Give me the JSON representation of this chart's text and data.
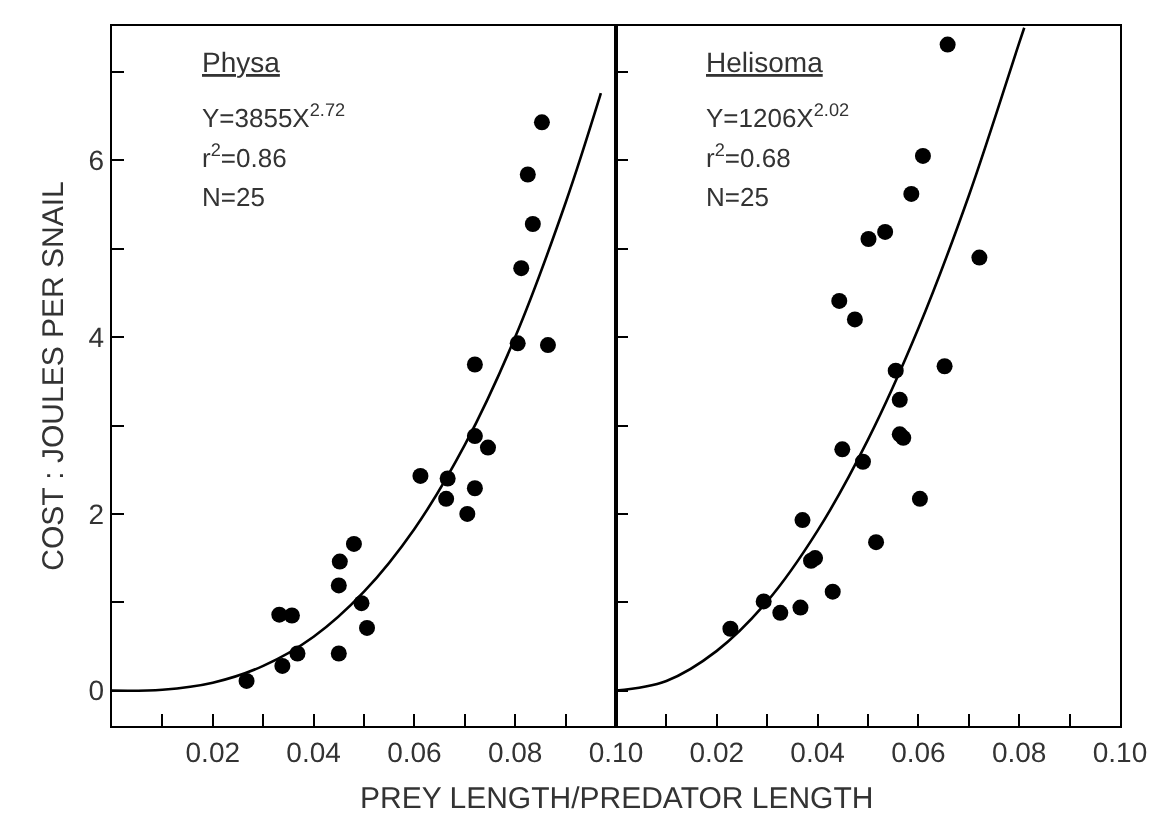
{
  "chart_data": [
    {
      "type": "scatter",
      "xlabel": "PREY LENGTH/PREDATOR LENGTH",
      "ylabel": "COST : JOULES PER SNAIL",
      "annotations": [
        "Physa",
        "Y=3855X$^{2.72}$",
        "r$^{2}$=0.86",
        "N=25"
      ],
      "series": [
        {
          "marker": "circle",
          "color": "#000000",
          "x": [
            0.0267,
            0.0338,
            0.0332,
            0.0357,
            0.0368,
            0.045,
            0.045,
            0.0452,
            0.048,
            0.0495,
            0.0506,
            0.0612,
            0.0666,
            0.0663,
            0.0705,
            0.072,
            0.072,
            0.0746,
            0.072,
            0.0805,
            0.0865,
            0.0812,
            0.0835,
            0.0825,
            0.0853
          ],
          "values": [
            0.11,
            0.28,
            0.86,
            0.85,
            0.42,
            0.42,
            1.19,
            1.46,
            1.66,
            0.99,
            0.71,
            2.43,
            2.4,
            2.17,
            2.0,
            2.29,
            2.88,
            2.75,
            3.69,
            3.93,
            3.91,
            4.78,
            5.28,
            5.84,
            6.43
          ]
        },
        {
          "type": "line",
          "color": "#000000",
          "x": [
            0,
            0.01,
            0.02,
            0.03,
            0.04,
            0.05,
            0.06,
            0.07,
            0.08,
            0.09,
            0.097
          ],
          "values": [
            0,
            0.01,
            0.09,
            0.28,
            0.61,
            1.12,
            1.83,
            2.78,
            4.0,
            5.52,
            6.76
          ]
        }
      ],
      "xlim": [
        0,
        0.1
      ],
      "xticks": [
        {
          "value": 0.01,
          "label": null
        },
        0.02,
        {
          "value": 0.03,
          "label": null
        },
        0.04,
        {
          "value": 0.05,
          "label": null
        },
        0.06,
        {
          "value": 0.07,
          "label": null
        },
        0.08,
        {
          "value": 0.09,
          "label": null
        },
        {
          "value": 0.1,
          "label": "0.10"
        }
      ],
      "ylim": [
        -0.4,
        7.52
      ],
      "yticks": [
        0,
        {
          "value": 1,
          "label": null
        },
        2,
        {
          "value": 3,
          "label": null
        },
        4,
        {
          "value": 5,
          "label": null
        },
        6,
        {
          "value": 7,
          "label": null
        }
      ]
    },
    {
      "type": "scatter",
      "tick_labels": "x",
      "annotations": [
        "Helisoma",
        "Y=1206X$^{2.02}$",
        "r$^{2}$=0.68",
        "N=25"
      ],
      "series": [
        {
          "marker": "circle",
          "color": "#000000",
          "x": [
            0.0227,
            0.0293,
            0.0326,
            0.0366,
            0.037,
            0.0387,
            0.0395,
            0.043,
            0.0443,
            0.0449,
            0.0474,
            0.049,
            0.0501,
            0.0516,
            0.0534,
            0.0555,
            0.0563,
            0.0563,
            0.057,
            0.0586,
            0.0603,
            0.0609,
            0.0652,
            0.0658,
            0.0721
          ],
          "values": [
            0.7,
            1.01,
            0.88,
            0.94,
            1.93,
            1.47,
            1.5,
            1.12,
            4.41,
            2.73,
            4.2,
            2.59,
            5.11,
            1.68,
            5.19,
            3.62,
            3.29,
            2.9,
            2.86,
            5.62,
            2.17,
            6.05,
            3.67,
            7.31,
            4.9
          ]
        },
        {
          "type": "line",
          "color": "#000000",
          "x": [
            0,
            0.01,
            0.02,
            0.03,
            0.04,
            0.05,
            0.06,
            0.07,
            0.08,
            0.081
          ],
          "values": [
            0,
            0.11,
            0.45,
            1.01,
            1.81,
            2.84,
            4.1,
            5.6,
            7.33,
            7.5
          ]
        }
      ],
      "xlim": [
        0,
        0.1
      ],
      "xticks": [
        {
          "value": 0.01,
          "label": null
        },
        {
          "value": 0.02,
          "label": "0.02"
        },
        {
          "value": 0.03,
          "label": null
        },
        0.04,
        {
          "value": 0.05,
          "label": null
        },
        0.06,
        {
          "value": 0.07,
          "label": null
        },
        0.08,
        {
          "value": 0.09,
          "label": null
        },
        {
          "value": 0.1,
          "label": "0.10"
        }
      ],
      "ylim": [
        -0.4,
        7.52
      ],
      "yticks": [
        0,
        {
          "value": 1,
          "label": null
        },
        2,
        {
          "value": 3,
          "label": null
        },
        4,
        {
          "value": 5,
          "label": null
        },
        6,
        {
          "value": 7,
          "label": null
        }
      ]
    }
  ]
}
